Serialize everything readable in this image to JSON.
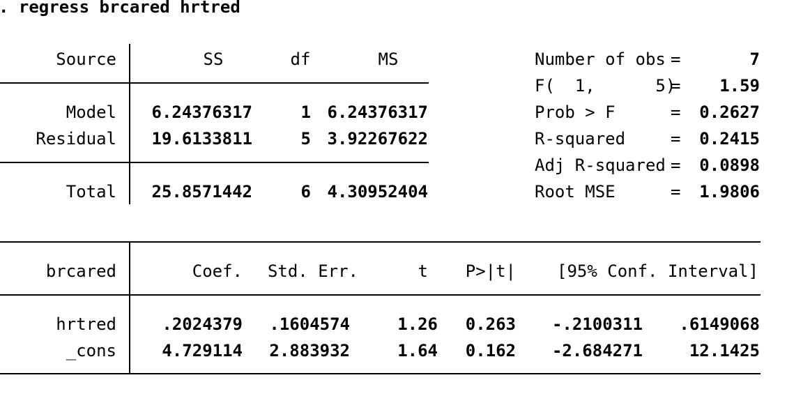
{
  "command": ". regress brcared hrtred",
  "anova": {
    "headers": {
      "source": "Source",
      "ss": "SS",
      "df": "df",
      "ms": "MS"
    },
    "rows": [
      {
        "source": "Model",
        "ss": "6.24376317",
        "df": "1",
        "ms": "6.24376317"
      },
      {
        "source": "Residual",
        "ss": "19.6133811",
        "df": "5",
        "ms": "3.92267622"
      }
    ],
    "total": {
      "source": "Total",
      "ss": "25.8571442",
      "df": "6",
      "ms": "4.30952404"
    }
  },
  "stats": [
    {
      "label": "Number of obs",
      "eq": "=",
      "value": "7"
    },
    {
      "label": "F(  1,      5)",
      "eq": "=",
      "value": "1.59"
    },
    {
      "label": "Prob > F",
      "eq": "=",
      "value": "0.2627"
    },
    {
      "label": "R-squared",
      "eq": "=",
      "value": "0.2415"
    },
    {
      "label": "Adj R-squared",
      "eq": "=",
      "value": "0.0898"
    },
    {
      "label": "Root MSE",
      "eq": "=",
      "value": "1.9806"
    }
  ],
  "coef_table": {
    "headers": {
      "depvar": "brcared",
      "coef": "Coef.",
      "se": "Std. Err.",
      "t": "t",
      "p": "P>|t|",
      "ci": "[95% Conf. Interval]"
    },
    "rows": [
      {
        "var": "hrtred",
        "coef": ".2024379",
        "se": ".1604574",
        "t": "1.26",
        "p": "0.263",
        "lo": "-.2100311",
        "hi": ".6149068"
      },
      {
        "var": "_cons",
        "coef": "4.729114",
        "se": "2.883932",
        "t": "1.64",
        "p": "0.162",
        "lo": "-2.684271",
        "hi": "12.1425"
      }
    ]
  }
}
